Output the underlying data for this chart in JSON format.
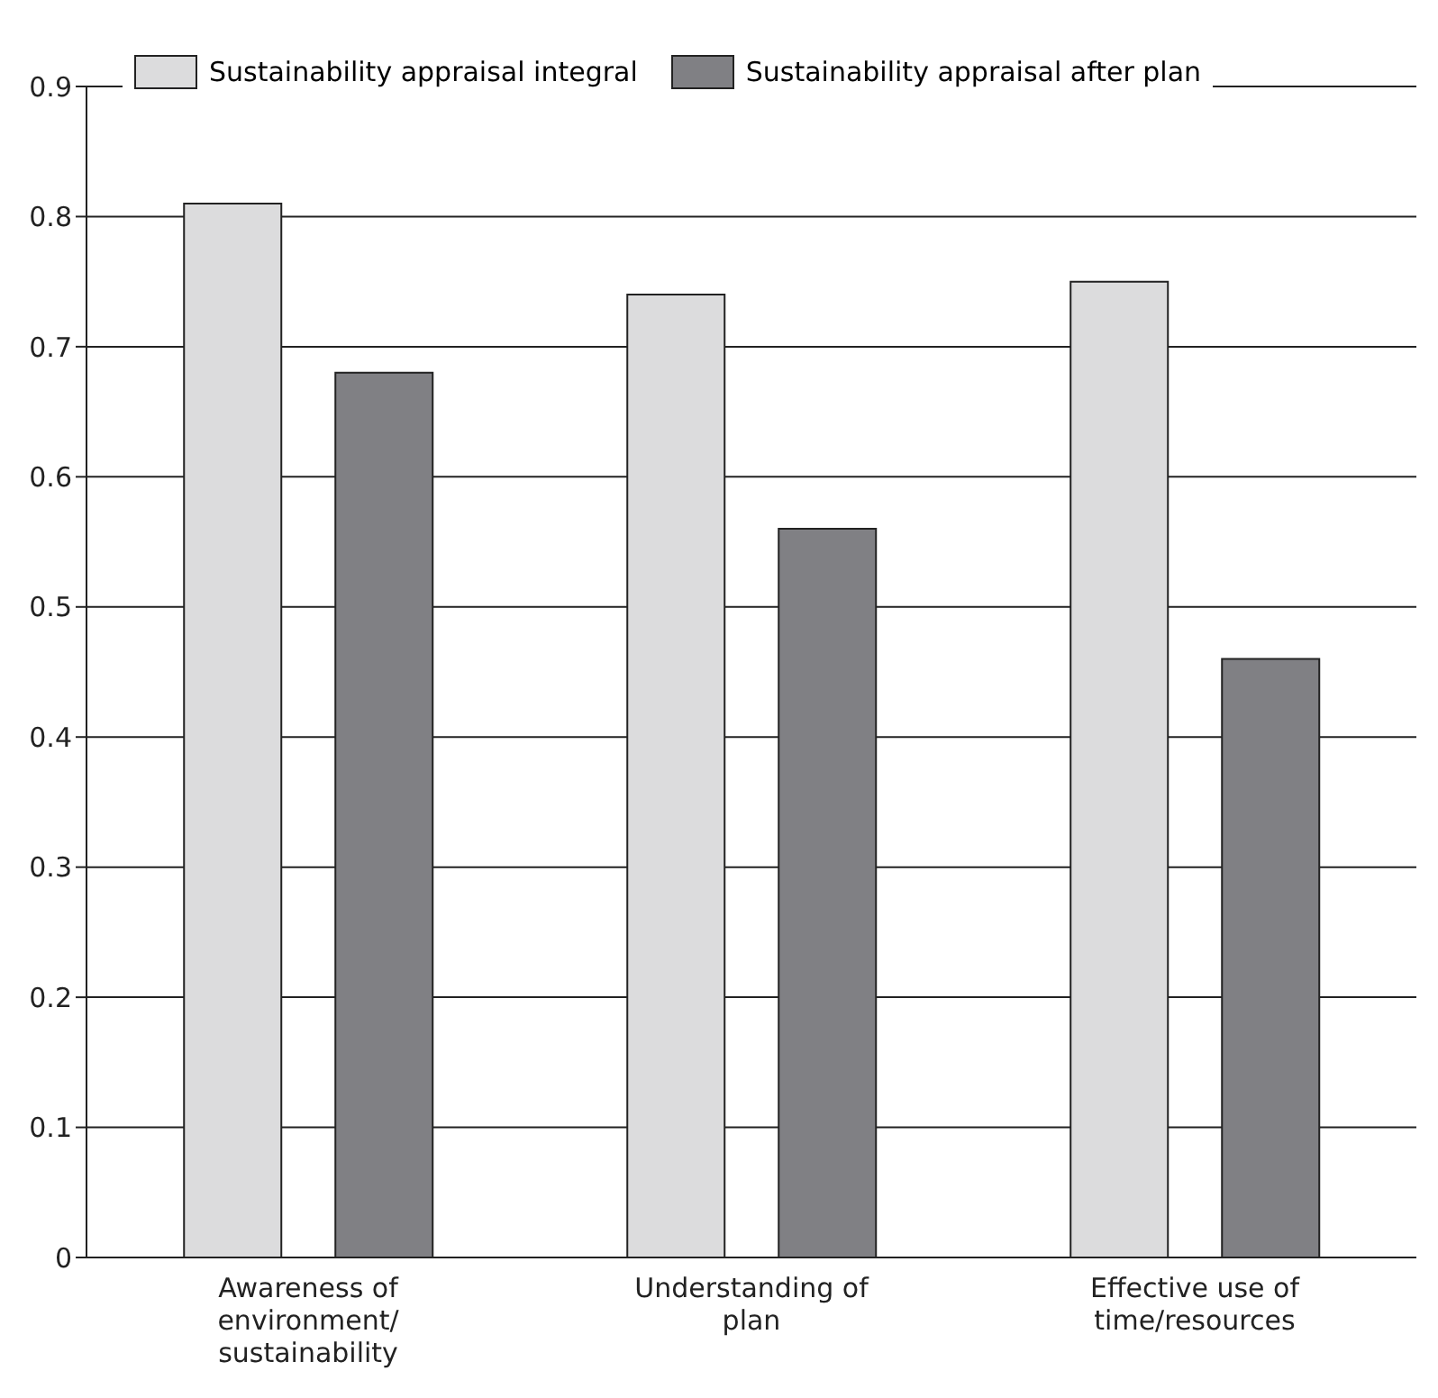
{
  "chart_data": {
    "type": "bar",
    "categories": [
      "Awareness of environment/ sustainability",
      "Understanding of plan",
      "Effective use of time/resources"
    ],
    "series": [
      {
        "name": "Sustainability appraisal integral",
        "color": "#dcdcdd",
        "values": [
          0.81,
          0.74,
          0.75
        ]
      },
      {
        "name": "Sustainability appraisal after plan",
        "color": "#808084",
        "values": [
          0.68,
          0.56,
          0.46
        ]
      }
    ],
    "ylim": [
      0,
      0.9
    ],
    "yticks": [
      0,
      0.1,
      0.2,
      0.3,
      0.4,
      0.5,
      0.6,
      0.7,
      0.8,
      0.9
    ],
    "grid": "y",
    "legend": "top"
  }
}
